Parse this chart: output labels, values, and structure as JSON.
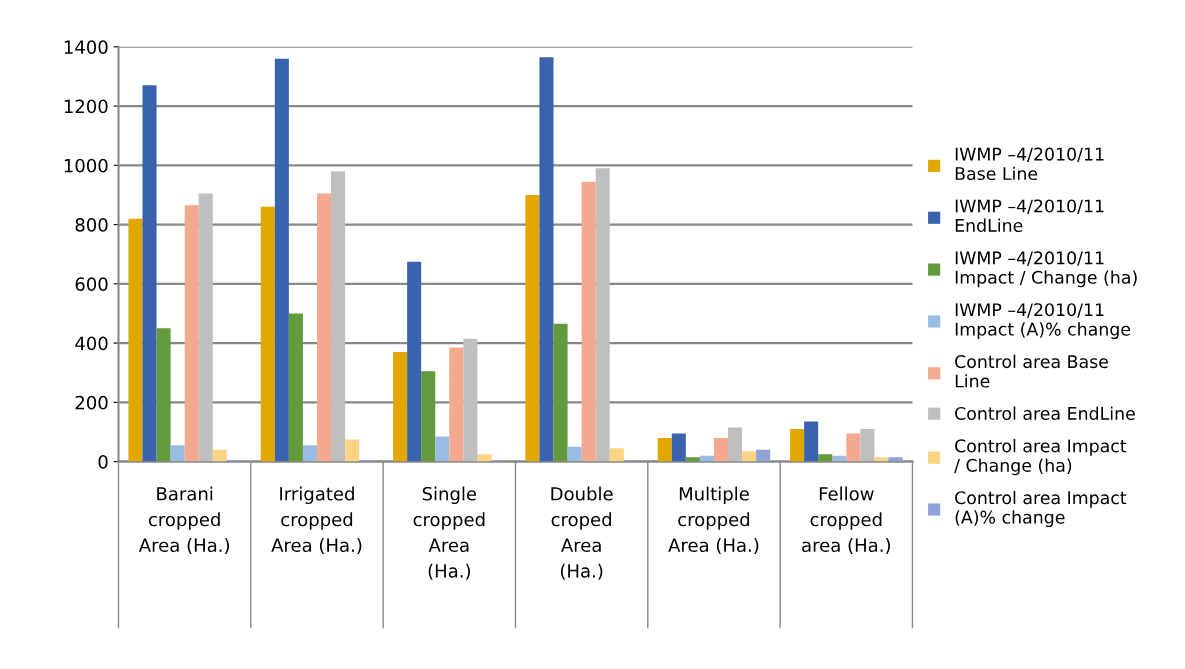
{
  "chart_data": {
    "type": "bar",
    "categories": [
      "Barani\ncropped\nArea (Ha.)",
      "Irrigated\ncropped\nArea (Ha.)",
      "Single\ncropped\nArea\n(Ha.)",
      "Double\ncroped\nArea\n(Ha.)",
      "Multiple\ncropped\nArea (Ha.)",
      "Fellow\ncropped\narea (Ha.)"
    ],
    "series": [
      {
        "name": "IWMP –4/2010/11\nBase Line",
        "color": "#e3a800",
        "values": [
          820,
          860,
          370,
          900,
          80,
          110
        ]
      },
      {
        "name": "IWMP –4/2010/11\nEndLine",
        "color": "#3a63ae",
        "values": [
          1270,
          1360,
          675,
          1365,
          95,
          135
        ]
      },
      {
        "name": "IWMP –4/2010/11\nImpact / Change (ha)",
        "color": "#629a3c",
        "values": [
          450,
          500,
          305,
          465,
          15,
          25
        ]
      },
      {
        "name": "IWMP –4/2010/11\nImpact (A)% change",
        "color": "#98bce2",
        "values": [
          55,
          55,
          85,
          50,
          20,
          20
        ]
      },
      {
        "name": "Control area Base\nLine",
        "color": "#f2a98d",
        "values": [
          865,
          905,
          385,
          945,
          80,
          95
        ]
      },
      {
        "name": "Control area EndLine",
        "color": "#bfbfbf",
        "values": [
          905,
          980,
          415,
          990,
          115,
          110
        ]
      },
      {
        "name": "Control area Impact\n/ Change (ha)",
        "color": "#fdd384",
        "values": [
          40,
          75,
          25,
          45,
          35,
          15
        ]
      },
      {
        "name": "Control area Impact\n(A)% change",
        "color": "#8fa3d6",
        "values": [
          5,
          5,
          5,
          5,
          40,
          15
        ]
      }
    ],
    "ylim": [
      0,
      1400
    ],
    "yticks": [
      0,
      200,
      400,
      600,
      800,
      1000,
      1200,
      1400
    ],
    "grid": "y",
    "legend": "right"
  }
}
